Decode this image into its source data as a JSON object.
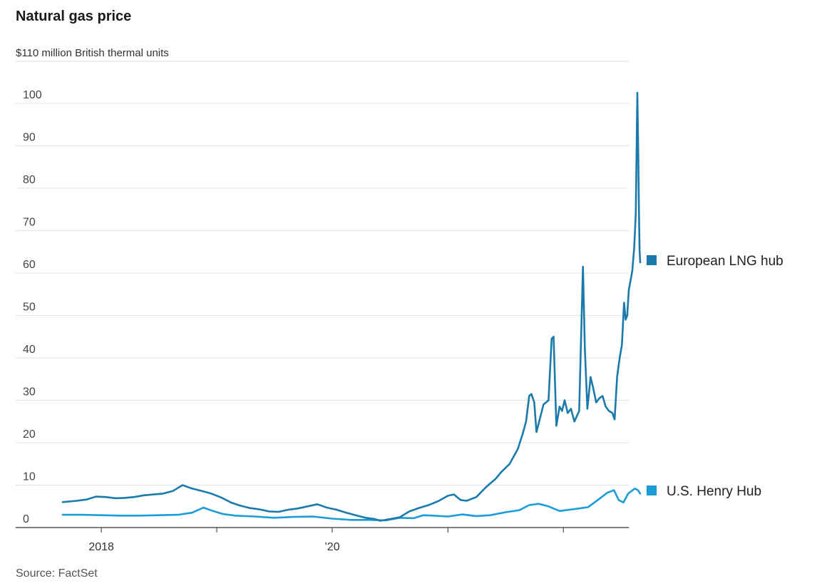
{
  "chart_data": {
    "type": "line",
    "title": "Natural gas price",
    "subtitle": "$110 million British thermal units",
    "source": "Source: FactSet",
    "xlabel": "",
    "ylabel": "",
    "ylim": [
      0,
      103
    ],
    "yticks": [
      0,
      10,
      20,
      30,
      40,
      50,
      60,
      70,
      80,
      90,
      100
    ],
    "xlim": [
      "2017-09-01",
      "2022-09-01"
    ],
    "xticks": [
      {
        "date": "2018-01-01",
        "label": "2018"
      },
      {
        "date": "2019-01-01",
        "label": ""
      },
      {
        "date": "2020-01-01",
        "label": "’20"
      },
      {
        "date": "2021-01-01",
        "label": ""
      },
      {
        "date": "2022-01-01",
        "label": ""
      }
    ],
    "grid": true,
    "legend": "right, at series ends",
    "series": [
      {
        "name": "European LNG hub",
        "color": "#1a7aab",
        "points": [
          [
            "2017-09-01",
            6.0
          ],
          [
            "2017-10-15",
            6.3
          ],
          [
            "2017-11-15",
            6.6
          ],
          [
            "2017-12-15",
            7.3
          ],
          [
            "2018-01-15",
            7.2
          ],
          [
            "2018-02-15",
            6.9
          ],
          [
            "2018-03-15",
            7.0
          ],
          [
            "2018-04-15",
            7.2
          ],
          [
            "2018-05-15",
            7.6
          ],
          [
            "2018-06-15",
            7.8
          ],
          [
            "2018-07-15",
            8.0
          ],
          [
            "2018-08-15",
            8.6
          ],
          [
            "2018-09-15",
            10.0
          ],
          [
            "2018-10-15",
            9.2
          ],
          [
            "2018-11-15",
            8.6
          ],
          [
            "2018-12-15",
            8.0
          ],
          [
            "2019-01-15",
            7.1
          ],
          [
            "2019-02-15",
            5.9
          ],
          [
            "2019-03-15",
            5.2
          ],
          [
            "2019-04-15",
            4.6
          ],
          [
            "2019-05-15",
            4.3
          ],
          [
            "2019-06-15",
            3.8
          ],
          [
            "2019-07-15",
            3.7
          ],
          [
            "2019-08-15",
            4.2
          ],
          [
            "2019-09-15",
            4.5
          ],
          [
            "2019-10-15",
            5.0
          ],
          [
            "2019-11-15",
            5.5
          ],
          [
            "2019-12-15",
            4.7
          ],
          [
            "2020-01-15",
            4.2
          ],
          [
            "2020-02-15",
            3.5
          ],
          [
            "2020-03-15",
            2.9
          ],
          [
            "2020-04-15",
            2.3
          ],
          [
            "2020-05-15",
            2.0
          ],
          [
            "2020-06-01",
            1.6
          ],
          [
            "2020-07-01",
            2.0
          ],
          [
            "2020-08-01",
            2.4
          ],
          [
            "2020-09-01",
            3.8
          ],
          [
            "2020-10-01",
            4.6
          ],
          [
            "2020-11-01",
            5.3
          ],
          [
            "2020-12-01",
            6.2
          ],
          [
            "2021-01-01",
            7.5
          ],
          [
            "2021-01-20",
            7.8
          ],
          [
            "2021-02-10",
            6.5
          ],
          [
            "2021-03-01",
            6.3
          ],
          [
            "2021-04-01",
            7.2
          ],
          [
            "2021-05-01",
            9.5
          ],
          [
            "2021-06-01",
            11.5
          ],
          [
            "2021-06-20",
            13.2
          ],
          [
            "2021-07-15",
            15.0
          ],
          [
            "2021-08-10",
            18.5
          ],
          [
            "2021-08-25",
            22.0
          ],
          [
            "2021-09-05",
            25.0
          ],
          [
            "2021-09-15",
            31.0
          ],
          [
            "2021-09-22",
            31.5
          ],
          [
            "2021-10-01",
            29.5
          ],
          [
            "2021-10-08",
            22.5
          ],
          [
            "2021-10-20",
            26.0
          ],
          [
            "2021-10-30",
            29.0
          ],
          [
            "2021-11-15",
            30.0
          ],
          [
            "2021-11-25",
            44.5
          ],
          [
            "2021-12-01",
            45.0
          ],
          [
            "2021-12-10",
            24.0
          ],
          [
            "2021-12-20",
            28.5
          ],
          [
            "2021-12-28",
            27.5
          ],
          [
            "2022-01-05",
            30.0
          ],
          [
            "2022-01-15",
            27.0
          ],
          [
            "2022-01-25",
            28.0
          ],
          [
            "2022-02-05",
            25.0
          ],
          [
            "2022-02-20",
            27.5
          ],
          [
            "2022-03-04",
            61.5
          ],
          [
            "2022-03-10",
            42.0
          ],
          [
            "2022-03-18",
            28.0
          ],
          [
            "2022-03-28",
            35.5
          ],
          [
            "2022-04-05",
            33.0
          ],
          [
            "2022-04-15",
            29.5
          ],
          [
            "2022-04-25",
            30.5
          ],
          [
            "2022-05-05",
            31.0
          ],
          [
            "2022-05-15",
            28.5
          ],
          [
            "2022-05-25",
            27.5
          ],
          [
            "2022-06-05",
            27.0
          ],
          [
            "2022-06-12",
            25.5
          ],
          [
            "2022-06-20",
            35.5
          ],
          [
            "2022-06-28",
            40.0
          ],
          [
            "2022-07-05",
            43.0
          ],
          [
            "2022-07-12",
            53.0
          ],
          [
            "2022-07-17",
            49.0
          ],
          [
            "2022-07-22",
            50.0
          ],
          [
            "2022-07-27",
            56.0
          ],
          [
            "2022-08-01",
            58.0
          ],
          [
            "2022-08-07",
            60.5
          ],
          [
            "2022-08-13",
            66.0
          ],
          [
            "2022-08-18",
            74.0
          ],
          [
            "2022-08-23",
            102.5
          ],
          [
            "2022-08-26",
            88.0
          ],
          [
            "2022-08-28",
            75.0
          ],
          [
            "2022-08-30",
            65.5
          ],
          [
            "2022-09-01",
            62.5
          ]
        ]
      },
      {
        "name": "U.S. Henry Hub",
        "color": "#1a9cd8",
        "points": [
          [
            "2017-09-01",
            3.0
          ],
          [
            "2017-11-01",
            3.0
          ],
          [
            "2018-01-01",
            2.9
          ],
          [
            "2018-03-01",
            2.8
          ],
          [
            "2018-05-01",
            2.8
          ],
          [
            "2018-07-01",
            2.9
          ],
          [
            "2018-09-01",
            3.0
          ],
          [
            "2018-10-15",
            3.5
          ],
          [
            "2018-11-20",
            4.7
          ],
          [
            "2018-12-20",
            3.9
          ],
          [
            "2019-01-20",
            3.2
          ],
          [
            "2019-03-01",
            2.8
          ],
          [
            "2019-05-01",
            2.6
          ],
          [
            "2019-07-01",
            2.3
          ],
          [
            "2019-09-01",
            2.5
          ],
          [
            "2019-11-01",
            2.6
          ],
          [
            "2020-01-01",
            2.1
          ],
          [
            "2020-03-01",
            1.8
          ],
          [
            "2020-05-01",
            1.8
          ],
          [
            "2020-06-20",
            1.7
          ],
          [
            "2020-08-01",
            2.3
          ],
          [
            "2020-09-15",
            2.2
          ],
          [
            "2020-10-15",
            2.9
          ],
          [
            "2020-11-15",
            2.8
          ],
          [
            "2021-01-01",
            2.6
          ],
          [
            "2021-02-15",
            3.1
          ],
          [
            "2021-04-01",
            2.7
          ],
          [
            "2021-05-15",
            2.9
          ],
          [
            "2021-07-01",
            3.6
          ],
          [
            "2021-08-15",
            4.1
          ],
          [
            "2021-09-15",
            5.3
          ],
          [
            "2021-10-15",
            5.6
          ],
          [
            "2021-11-15",
            5.0
          ],
          [
            "2021-12-20",
            3.9
          ],
          [
            "2022-01-20",
            4.2
          ],
          [
            "2022-02-20",
            4.5
          ],
          [
            "2022-03-20",
            4.8
          ],
          [
            "2022-04-20",
            6.5
          ],
          [
            "2022-05-20",
            8.2
          ],
          [
            "2022-06-10",
            8.8
          ],
          [
            "2022-06-25",
            6.5
          ],
          [
            "2022-07-10",
            5.9
          ],
          [
            "2022-07-25",
            8.0
          ],
          [
            "2022-08-15",
            9.2
          ],
          [
            "2022-08-25",
            8.8
          ],
          [
            "2022-09-01",
            8.0
          ]
        ]
      }
    ]
  }
}
